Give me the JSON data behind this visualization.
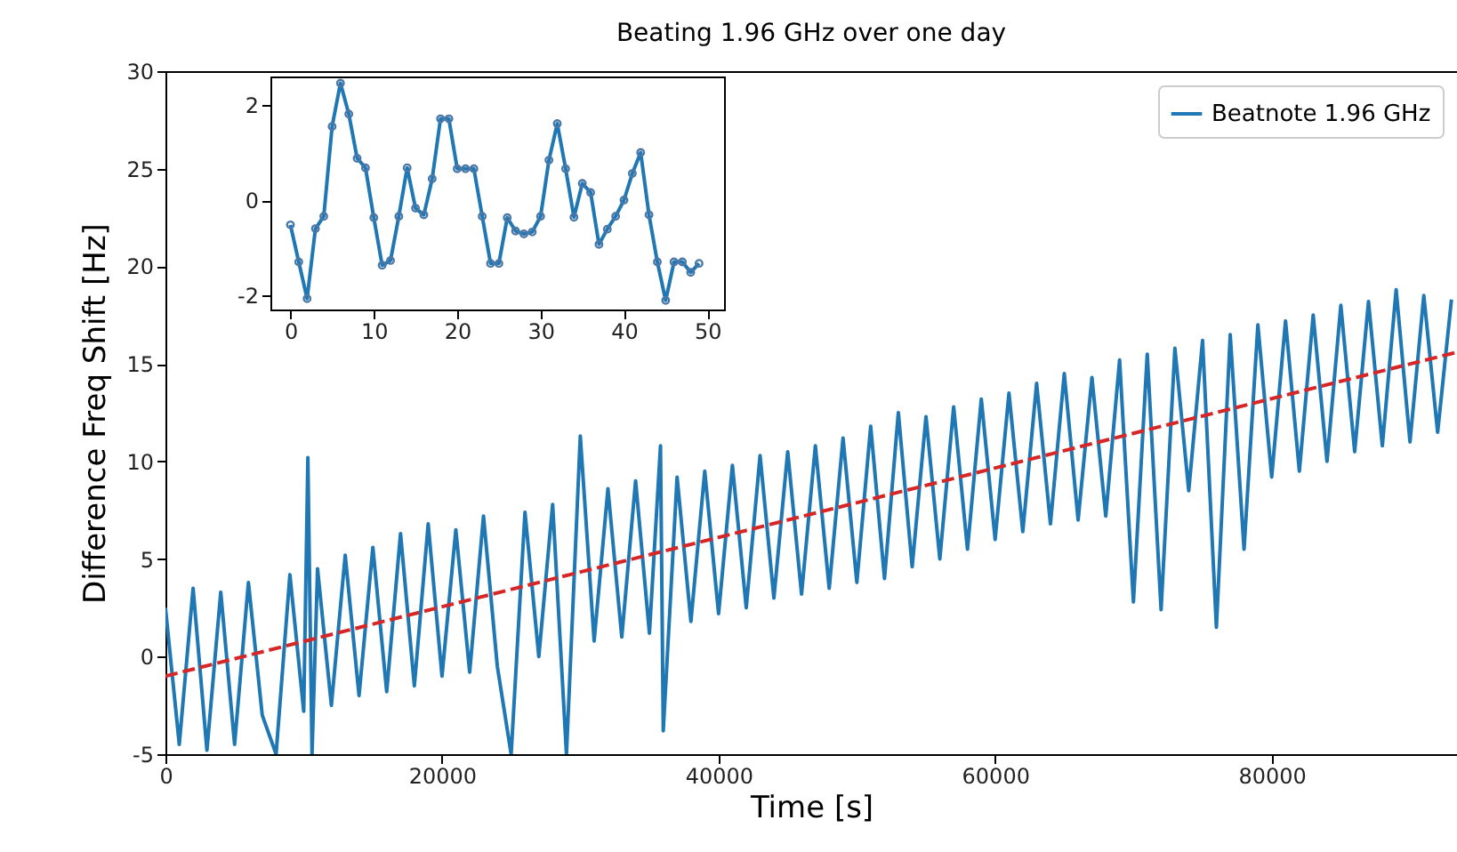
{
  "chart_data": [
    {
      "type": "line",
      "title": "Beating 1.96 GHz over one day",
      "xlabel": "Time [s]",
      "ylabel": "Difference Freq Shift [Hz]",
      "xlim": [
        0,
        93400
      ],
      "ylim": [
        -5,
        30
      ],
      "xticks": [
        0,
        20000,
        40000,
        60000,
        80000
      ],
      "yticks": [
        -5,
        0,
        5,
        10,
        15,
        20,
        25,
        30
      ],
      "grid": false,
      "legend": "top right",
      "series": [
        {
          "name": "Beatnote 1.96 GHz",
          "color": "#1f77b4",
          "x": [
            0,
            1000,
            2000,
            3000,
            4000,
            5000,
            6000,
            7000,
            8000,
            9000,
            10000,
            10300,
            10600,
            11000,
            12000,
            13000,
            14000,
            15000,
            16000,
            17000,
            18000,
            19000,
            20000,
            21000,
            22000,
            23000,
            24000,
            25000,
            26000,
            27000,
            28000,
            29000,
            30000,
            31000,
            32000,
            33000,
            34000,
            35000,
            35800,
            36000,
            37000,
            38000,
            39000,
            40000,
            41000,
            42000,
            43000,
            44000,
            45000,
            46000,
            47000,
            48000,
            49000,
            50000,
            51000,
            52000,
            53000,
            54000,
            55000,
            56000,
            57000,
            58000,
            59000,
            60000,
            61000,
            62000,
            63000,
            64000,
            65000,
            66000,
            67000,
            68000,
            69000,
            70000,
            71000,
            72000,
            73000,
            74000,
            75000,
            76000,
            77000,
            78000,
            79000,
            80000,
            81000,
            82000,
            83000,
            84000,
            85000,
            86000,
            87000,
            88000,
            89000,
            90000,
            91000,
            92000,
            93000
          ],
          "values": [
            2.5,
            -4.5,
            3.5,
            -4.8,
            3.3,
            -4.5,
            3.8,
            -3,
            -5,
            4.2,
            -2.8,
            10.2,
            -5,
            4.5,
            -2.5,
            5.2,
            -2,
            5.6,
            -1.8,
            6.3,
            -1.5,
            6.8,
            -1,
            6.5,
            -0.8,
            7.2,
            -0.5,
            -5,
            7.4,
            0,
            7.8,
            -5,
            11.3,
            0.8,
            8.6,
            1,
            9,
            1.2,
            10.8,
            -3.8,
            9.2,
            1.8,
            9.5,
            2.2,
            9.8,
            2.5,
            10.3,
            3,
            10.5,
            3.2,
            10.8,
            3.5,
            11.2,
            3.8,
            11.8,
            4,
            12.5,
            4.6,
            12.3,
            5,
            12.8,
            5.5,
            13.2,
            6,
            13.5,
            6.4,
            14,
            6.8,
            14.5,
            7,
            14.3,
            7.2,
            15.2,
            2.8,
            15.5,
            2.4,
            15.8,
            8.5,
            16.2,
            1.5,
            16.5,
            5.5,
            17,
            9.2,
            17.2,
            9.5,
            17.5,
            10,
            18,
            10.5,
            18.2,
            10.8,
            18.8,
            11,
            18.5,
            11.5,
            18.3
          ]
        },
        {
          "type": "line",
          "color": "#d62728",
          "line_style": "dashed",
          "x": [
            0,
            93400
          ],
          "values": [
            -1,
            15.6
          ]
        }
      ]
    },
    {
      "type": "line",
      "marker": "circle",
      "xlim": [
        -2.4,
        52
      ],
      "ylim": [
        -2.3,
        2.6
      ],
      "xticks": [
        0,
        10,
        20,
        30,
        40,
        50
      ],
      "yticks": [
        -2,
        0,
        2
      ],
      "grid": false,
      "series": [
        {
          "color": "#1f77b4",
          "x": [
            0,
            1,
            2,
            3,
            4,
            5,
            6,
            7,
            8,
            9,
            10,
            11,
            12,
            13,
            14,
            15,
            16,
            17,
            18,
            19,
            20,
            21,
            22,
            23,
            24,
            25,
            26,
            27,
            28,
            29,
            30,
            31,
            32,
            33,
            34,
            35,
            36,
            37,
            38,
            39,
            40,
            41,
            42,
            43,
            44,
            45,
            46,
            47,
            48,
            49
          ],
          "values": [
            -0.52,
            -1.3,
            -2.07,
            -0.6,
            -0.34,
            1.55,
            2.46,
            1.81,
            0.88,
            0.68,
            -0.37,
            -1.37,
            -1.27,
            -0.34,
            0.68,
            -0.17,
            -0.31,
            0.45,
            1.71,
            1.71,
            0.66,
            0.66,
            0.66,
            -0.34,
            -1.33,
            -1.33,
            -0.37,
            -0.65,
            -0.71,
            -0.67,
            -0.34,
            0.84,
            1.61,
            0.66,
            -0.36,
            0.35,
            0.16,
            -0.93,
            -0.61,
            -0.34,
            0,
            0.56,
            1.0,
            -0.31,
            -1.3,
            -2.11,
            -1.3,
            -1.3,
            -1.52,
            -1.33
          ]
        }
      ]
    }
  ]
}
